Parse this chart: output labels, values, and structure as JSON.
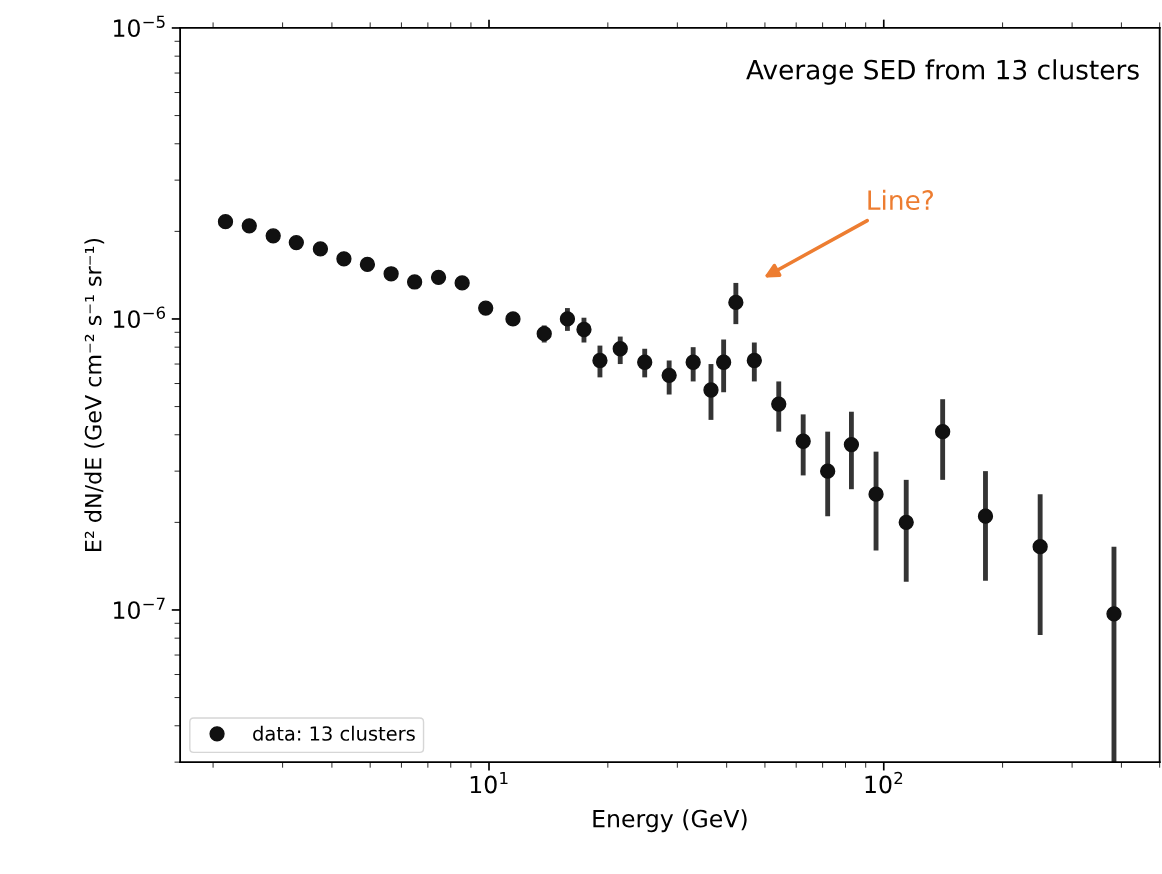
{
  "chart_data": {
    "type": "scatter",
    "title": "Average SED from 13 clusters",
    "xlabel": "Energy (GeV)",
    "ylabel": "E² dN/dE (GeV cm⁻² s⁻¹ sr⁻¹)",
    "x": [
      2.15,
      2.47,
      2.84,
      3.25,
      3.74,
      4.29,
      4.92,
      5.65,
      6.48,
      7.45,
      8.55,
      9.81,
      11.5,
      13.8,
      15.8,
      17.4,
      19.1,
      21.5,
      24.8,
      28.6,
      32.9,
      36.5,
      39.3,
      42.2,
      47.0,
      54.2,
      62.5,
      72.1,
      82.8,
      95.6,
      114,
      141,
      181,
      249,
      383
    ],
    "series": [
      {
        "name": "data: 13 clusters",
        "color": "#111111",
        "values": [
          2.16e-06,
          2.09e-06,
          1.93e-06,
          1.83e-06,
          1.74e-06,
          1.61e-06,
          1.54e-06,
          1.43e-06,
          1.34e-06,
          1.39e-06,
          1.33e-06,
          1.09e-06,
          1e-06,
          8.9e-07,
          1e-06,
          9.2e-07,
          7.2e-07,
          7.9e-07,
          7.1e-07,
          6.4e-07,
          7.1e-07,
          5.7e-07,
          7.1e-07,
          1.14e-06,
          7.2e-07,
          5.1e-07,
          3.8e-07,
          3e-07,
          3.7e-07,
          2.5e-07,
          2e-07,
          4.1e-07,
          2.1e-07,
          1.65e-07,
          9.7e-08
        ],
        "errors": [
          null,
          null,
          null,
          null,
          null,
          null,
          null,
          null,
          null,
          null,
          null,
          null,
          null,
          [
            8.3e-07,
            9.5e-07
          ],
          [
            9.1e-07,
            1.09e-06
          ],
          [
            8.3e-07,
            1.01e-06
          ],
          [
            6.3e-07,
            8.1e-07
          ],
          [
            7e-07,
            8.7e-07
          ],
          [
            6.3e-07,
            7.9e-07
          ],
          [
            5.5e-07,
            7.2e-07
          ],
          [
            6.1e-07,
            8e-07
          ],
          [
            4.5e-07,
            7e-07
          ],
          [
            5.6e-07,
            8.5e-07
          ],
          [
            9.6e-07,
            1.33e-06
          ],
          [
            6.1e-07,
            8.3e-07
          ],
          [
            4.1e-07,
            6.1e-07
          ],
          [
            2.9e-07,
            4.7e-07
          ],
          [
            2.1e-07,
            4.1e-07
          ],
          [
            2.6e-07,
            4.8e-07
          ],
          [
            1.6e-07,
            3.5e-07
          ],
          [
            1.25e-07,
            2.8e-07
          ],
          [
            2.8e-07,
            5.3e-07
          ],
          [
            1.26e-07,
            3e-07
          ],
          [
            8.2e-08,
            2.5e-07
          ],
          [
            3e-08,
            1.65e-07
          ]
        ]
      }
    ],
    "log": "xy",
    "xlim": [
      1.65,
      500
    ],
    "ylim": [
      3e-08,
      1e-05
    ],
    "xticks": [
      {
        "value": 10,
        "label": "10$^{1}$"
      },
      {
        "value": 100,
        "label": "10$^{2}$"
      }
    ],
    "yticks": [
      {
        "value": 1e-07,
        "label": "10$^{−7}$"
      },
      {
        "value": 1e-06,
        "label": "10$^{−6}$"
      },
      {
        "value": 1e-05,
        "label": "10$^{−5}$"
      }
    ],
    "marker": "circle",
    "legend": "bottom left",
    "grid": false,
    "annotations": [
      "Line?"
    ]
  }
}
